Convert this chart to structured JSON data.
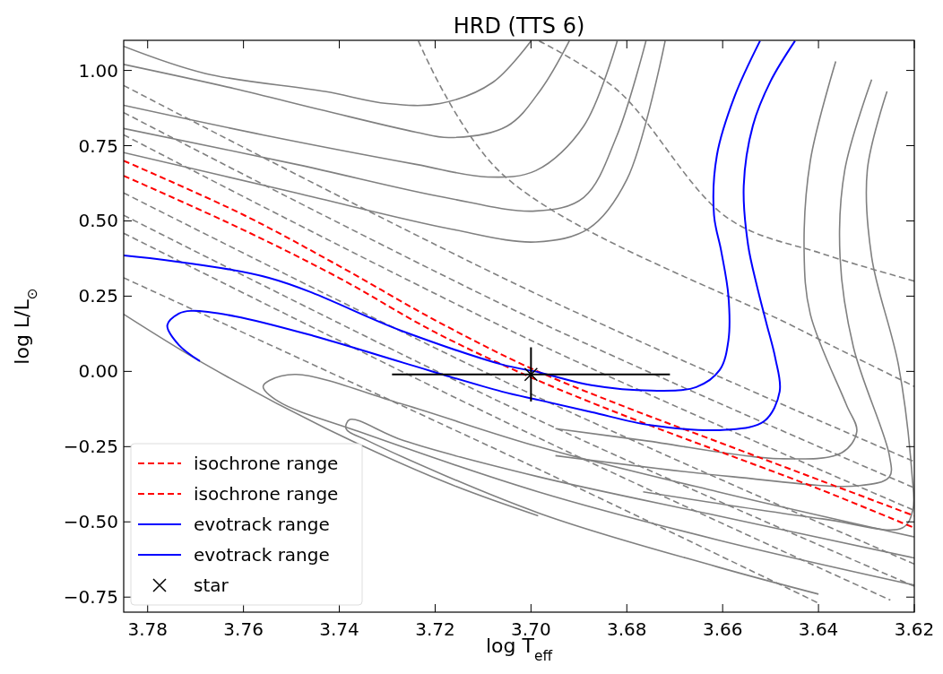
{
  "chart_data": {
    "type": "line",
    "title": "HRD (TTS 6)",
    "xlabel": "log T$_{eff}$",
    "ylabel": "log L/L$_{⊙}$",
    "xlim": [
      3.785,
      3.62
    ],
    "ylim": [
      -0.8,
      1.1
    ],
    "xticks": [
      {
        "value": 3.78,
        "label": "3.78"
      },
      {
        "value": 3.76,
        "label": "3.76"
      },
      {
        "value": 3.74,
        "label": "3.74"
      },
      {
        "value": 3.72,
        "label": "3.72"
      },
      {
        "value": 3.7,
        "label": "3.70"
      },
      {
        "value": 3.68,
        "label": "3.68"
      },
      {
        "value": 3.66,
        "label": "3.66"
      },
      {
        "value": 3.64,
        "label": "3.64"
      },
      {
        "value": 3.62,
        "label": "3.62"
      }
    ],
    "yticks": [
      {
        "value": -0.75,
        "label": "−0.75"
      },
      {
        "value": -0.5,
        "label": "−0.50"
      },
      {
        "value": -0.25,
        "label": "−0.25"
      },
      {
        "value": 0,
        "label": "0.00"
      },
      {
        "value": 0.25,
        "label": "0.25"
      },
      {
        "value": 0.5,
        "label": "0.50"
      },
      {
        "value": 0.75,
        "label": "0.75"
      },
      {
        "value": 1,
        "label": "1.00"
      }
    ],
    "grid": false,
    "legend": "bottom left",
    "series": [
      {
        "color": "#808080",
        "line_style": "solid",
        "x": [
          3.785,
          3.768,
          3.743,
          3.73,
          3.719,
          3.708,
          3.7
        ],
        "values": [
          1.08,
          0.99,
          0.93,
          0.89,
          0.89,
          0.96,
          1.098
        ]
      },
      {
        "color": "#808080",
        "line_style": "solid",
        "x": [
          3.785,
          3.762,
          3.743,
          3.724,
          3.717,
          3.705,
          3.698,
          3.692
        ],
        "values": [
          1.02,
          0.94,
          0.866,
          0.795,
          0.777,
          0.815,
          0.935,
          1.098
        ]
      },
      {
        "color": "#808080",
        "line_style": "solid",
        "x": [
          3.785,
          3.756,
          3.724,
          3.709,
          3.699,
          3.689,
          3.682
        ],
        "values": [
          0.884,
          0.786,
          0.688,
          0.646,
          0.667,
          0.815,
          1.098
        ]
      },
      {
        "color": "#808080",
        "line_style": "solid",
        "x": [
          3.785,
          3.749,
          3.718,
          3.699,
          3.689,
          3.682,
          3.676
        ],
        "values": [
          0.807,
          0.688,
          0.578,
          0.533,
          0.578,
          0.786,
          1.098
        ]
      },
      {
        "color": "#808080",
        "line_style": "solid",
        "x": [
          3.785,
          3.749,
          3.717,
          3.699,
          3.688,
          3.68,
          3.672
        ],
        "values": [
          0.727,
          0.593,
          0.474,
          0.43,
          0.474,
          0.637,
          1.098
        ]
      },
      {
        "color": "#808080",
        "line_style": "solid",
        "x": [
          3.6364,
          3.6417,
          3.643,
          3.6417,
          3.6342,
          3.632,
          3.6351,
          3.6482,
          3.6762,
          3.6949
        ],
        "values": [
          1.03,
          0.7,
          0.4,
          0.19,
          -0.11,
          -0.2,
          -0.27,
          -0.29,
          -0.23,
          -0.19
        ]
      },
      {
        "color": "#808080",
        "line_style": "solid",
        "x": [
          3.6289,
          3.6345,
          3.6355,
          3.6327,
          3.6252,
          3.6252,
          3.6317,
          3.6579,
          3.6949
        ],
        "values": [
          0.97,
          0.67,
          0.38,
          0.08,
          -0.28,
          -0.35,
          -0.38,
          -0.35,
          -0.28
        ]
      },
      {
        "color": "#808080",
        "line_style": "solid",
        "x": [
          3.6257,
          3.6298,
          3.6289,
          3.6233,
          3.6205,
          3.6203,
          3.6225,
          3.6392,
          3.6766
        ],
        "values": [
          0.93,
          0.67,
          0.38,
          0.02,
          -0.34,
          -0.46,
          -0.52,
          -0.49,
          -0.4
        ]
      },
      {
        "color": "#808080",
        "line_style": "solid",
        "x": [
          3.62,
          3.661,
          3.6985,
          3.7266,
          3.749,
          3.7546,
          3.7559,
          3.7527,
          3.7359,
          3.6985,
          3.661,
          3.62
        ],
        "values": [
          -0.55,
          -0.4,
          -0.25,
          -0.11,
          -0.01,
          -0.03,
          -0.05,
          -0.1,
          -0.2,
          -0.4,
          -0.56,
          -0.71
        ]
      },
      {
        "color": "#808080",
        "line_style": "solid",
        "x": [
          3.62,
          3.661,
          3.6985,
          3.7266,
          3.7378,
          3.7386,
          3.7341,
          3.6985,
          3.661,
          3.64
        ],
        "values": [
          -0.62,
          -0.48,
          -0.35,
          -0.23,
          -0.16,
          -0.19,
          -0.23,
          -0.47,
          -0.65,
          -0.74
        ]
      },
      {
        "color": "#808080",
        "line_style": "solid",
        "x": [
          3.785,
          3.7676,
          3.7427,
          3.7176,
          3.6985
        ],
        "values": [
          0.19,
          0.02,
          -0.19,
          -0.37,
          -0.48
        ]
      },
      {
        "color": "#808080",
        "line_style": "dashed",
        "x": [
          3.6983,
          3.682,
          3.659,
          3.639,
          3.62
        ],
        "values": [
          1.098,
          0.935,
          0.51,
          0.39,
          0.3
        ]
      },
      {
        "color": "#808080",
        "line_style": "dashed",
        "x": [
          3.7235,
          3.7061,
          3.644,
          3.62
        ],
        "values": [
          1.098,
          0.657,
          0.14,
          -0.05
        ]
      },
      {
        "color": "#808080",
        "line_style": "dashed",
        "x": [
          3.785,
          3.7,
          3.62
        ],
        "values": [
          0.95,
          0.266,
          -0.3
        ]
      },
      {
        "color": "#808080",
        "line_style": "dashed",
        "x": [
          3.785,
          3.7,
          3.62
        ],
        "values": [
          0.86,
          0.177,
          -0.387
        ]
      },
      {
        "color": "#808080",
        "line_style": "dashed",
        "x": [
          3.785,
          3.7,
          3.62
        ],
        "values": [
          0.786,
          0.103,
          -0.462
        ]
      },
      {
        "color": "#808080",
        "line_style": "dashed",
        "x": [
          3.785,
          3.7,
          3.62
        ],
        "values": [
          0.593,
          -0.075,
          -0.64
        ]
      },
      {
        "color": "#808080",
        "line_style": "dashed",
        "x": [
          3.785,
          3.7,
          3.62
        ],
        "values": [
          0.519,
          -0.15,
          -0.714
        ]
      },
      {
        "color": "#808080",
        "line_style": "dashed",
        "x": [
          3.785,
          3.7,
          3.625
        ],
        "values": [
          0.459,
          -0.209,
          -0.76
        ]
      },
      {
        "color": "#808080",
        "line_style": "dashed",
        "x": [
          3.785,
          3.7,
          3.64
        ],
        "values": [
          0.311,
          -0.313,
          -0.77
        ]
      },
      {
        "name": "isochrone range",
        "color": "#ff0000",
        "line_style": "dashed",
        "x": [
          3.785,
          3.76,
          3.74,
          3.72,
          3.7,
          3.68,
          3.66,
          3.64,
          3.62
        ],
        "values": [
          0.7,
          0.52,
          0.35,
          0.17,
          0.01,
          -0.12,
          -0.24,
          -0.36,
          -0.48
        ]
      },
      {
        "name": "isochrone range",
        "color": "#ff0000",
        "line_style": "dashed",
        "x": [
          3.785,
          3.76,
          3.74,
          3.72,
          3.7,
          3.68,
          3.66,
          3.64,
          3.62
        ],
        "values": [
          0.65,
          0.47,
          0.31,
          0.13,
          -0.02,
          -0.15,
          -0.27,
          -0.39,
          -0.52
        ]
      },
      {
        "name": "evotrack range",
        "color": "#0000ff",
        "line_style": "solid",
        "x": [
          3.785,
          3.7547,
          3.7267,
          3.7061,
          3.6981,
          3.6874,
          3.6749,
          3.6655,
          3.6606,
          3.6588,
          3.6588,
          3.6603,
          3.6618,
          3.6612,
          3.6575,
          3.6522
        ],
        "values": [
          0.385,
          0.311,
          0.133,
          0.023,
          -0.004,
          -0.046,
          -0.064,
          -0.052,
          0.005,
          0.103,
          0.251,
          0.4,
          0.519,
          0.718,
          0.914,
          1.098
        ]
      },
      {
        "name": "evotrack range",
        "color": "#0000ff",
        "line_style": "solid",
        "x": [
          3.7691,
          3.7735,
          3.7759,
          3.7735,
          3.771,
          3.7617,
          3.7454,
          3.7267,
          3.7061,
          3.6981,
          3.6874,
          3.6749,
          3.6593,
          3.6513,
          3.6481,
          3.649,
          3.6509,
          3.6528,
          3.6547,
          3.6556,
          3.6537,
          3.65,
          3.6449
        ],
        "values": [
          0.034,
          0.088,
          0.153,
          0.192,
          0.201,
          0.183,
          0.118,
          0.029,
          -0.067,
          -0.096,
          -0.135,
          -0.179,
          -0.194,
          -0.165,
          -0.067,
          0.043,
          0.162,
          0.281,
          0.421,
          0.617,
          0.816,
          0.964,
          1.098
        ]
      },
      {
        "name": "star",
        "type": "scatter",
        "marker": "cross",
        "color": "#000000",
        "x": [
          3.7
        ],
        "values": [
          -0.01
        ],
        "xerrors": [
          0.029
        ],
        "errors": [
          0.09
        ]
      }
    ]
  }
}
